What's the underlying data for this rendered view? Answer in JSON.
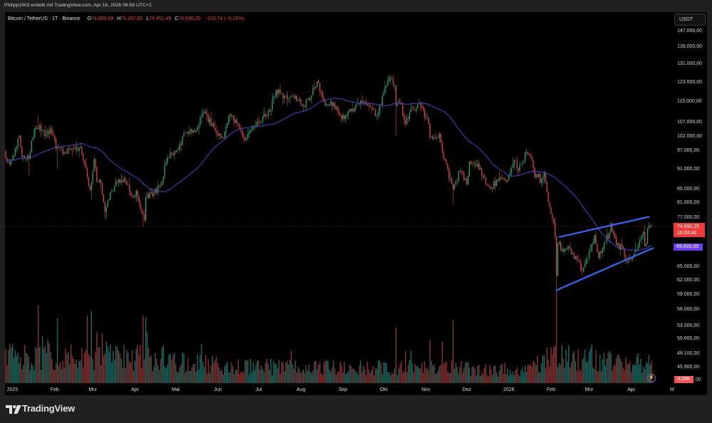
{
  "header": {
    "attribution": "Philipp1902 erstellt mit TradingView.com, Apr 16, 2026 09:56 UTC+2"
  },
  "legend": {
    "symbol": "Bitcoin / TetherUS · 1T · Binance",
    "open_label": "O",
    "open": "74.809,99",
    "high_label": "H",
    "high": "75.267,85",
    "low_label": "L",
    "low": "74.451,49",
    "close_label": "C",
    "close": "74.690,25",
    "change": "−119,74 (−0,16%)"
  },
  "price_axis": {
    "currency_button": "USDT",
    "ticks": [
      {
        "label": "147.000,00",
        "value": 147000
      },
      {
        "label": "139.000,00",
        "value": 139000
      },
      {
        "label": "131.000,00",
        "value": 131000
      },
      {
        "label": "123.000,00",
        "value": 123000
      },
      {
        "label": "115.000,00",
        "value": 115000
      },
      {
        "label": "107.000,00",
        "value": 107000
      },
      {
        "label": "102.000,00",
        "value": 102000
      },
      {
        "label": "97.000,00",
        "value": 97000
      },
      {
        "label": "91.000,00",
        "value": 91000
      },
      {
        "label": "85.000,00",
        "value": 85000
      },
      {
        "label": "81.000,00",
        "value": 81000
      },
      {
        "label": "77.000,00",
        "value": 77000
      },
      {
        "label": "65.000,00",
        "value": 65000
      },
      {
        "label": "62.000,00",
        "value": 62000
      },
      {
        "label": "59.000,00",
        "value": 59000
      },
      {
        "label": "56.000,00",
        "value": 56000
      },
      {
        "label": "53.000,00",
        "value": 53000
      },
      {
        "label": "50.600,00",
        "value": 50600
      },
      {
        "label": "48.100,00",
        "value": 48100
      },
      {
        "label": "45.900,00",
        "value": 45900
      }
    ],
    "last_price": {
      "label": "74.690,25",
      "value": 74690.25,
      "countdown": "16:03:46"
    },
    "ma_value": {
      "label": "69.835,09",
      "value": 69835.09
    },
    "volume_value": {
      "label": "4,08K"
    },
    "volume_tick_fragment": ",00"
  },
  "time_axis": {
    "labels": [
      {
        "label": "2025",
        "date": "2025-01-01"
      },
      {
        "label": "Feb",
        "date": "2025-02-01"
      },
      {
        "label": "Mrz",
        "date": "2025-03-01"
      },
      {
        "label": "Apr",
        "date": "2025-04-01"
      },
      {
        "label": "Mai",
        "date": "2025-05-01"
      },
      {
        "label": "Jun",
        "date": "2025-06-01"
      },
      {
        "label": "Jul",
        "date": "2025-07-01"
      },
      {
        "label": "Aug",
        "date": "2025-08-01"
      },
      {
        "label": "Sep",
        "date": "2025-09-01"
      },
      {
        "label": "Okt",
        "date": "2025-10-01"
      },
      {
        "label": "Nov",
        "date": "2025-11-01"
      },
      {
        "label": "Dez",
        "date": "2025-12-01"
      },
      {
        "label": "2026",
        "date": "2026-01-01"
      },
      {
        "label": "Feb",
        "date": "2026-02-01"
      },
      {
        "label": "Mrz",
        "date": "2026-03-01"
      },
      {
        "label": "Apr",
        "date": "2026-04-01"
      },
      {
        "label": "M",
        "date": "2026-05-01"
      }
    ]
  },
  "icons": {
    "alert": "⚡"
  },
  "footer": {
    "brand": "TradingView"
  },
  "colors": {
    "background": "#202020",
    "panel": "#000000",
    "up": "#2ea570",
    "down": "#e04848",
    "vol_up": "#1d6b62",
    "vol_down": "#8c3333",
    "ma": "#4b40d4",
    "trendline": "#2f6bf5",
    "last_price": "#f03a3a",
    "ma_label": "#6a3df2",
    "volume_label": "#f05454",
    "alert": "#9b4fd0"
  },
  "chart_data": {
    "type": "line",
    "style": "candlestick",
    "title": "Bitcoin / TetherUS · 1T · Binance",
    "xlabel": "",
    "ylabel": "USDT",
    "y_scale": "log",
    "ylim": [
      45900,
      147000
    ],
    "x_range": [
      "2024-12-27",
      "2026-04-16"
    ],
    "grid": false,
    "legend_position": "top-left",
    "first_open": 96800,
    "last_candle": {
      "open": 74809.99,
      "high": 75267.85,
      "low": 74451.49,
      "close": 74690.25,
      "change": -119.74,
      "change_pct": -0.16
    },
    "series": [
      {
        "name": "BTCUSDT daily close (approx.)",
        "points": [
          [
            "2024-12-27",
            94500
          ],
          [
            "2024-12-30",
            92500
          ],
          [
            "2025-01-01",
            94500
          ],
          [
            "2025-01-04",
            98300
          ],
          [
            "2025-01-06",
            102200
          ],
          [
            "2025-01-08",
            95000
          ],
          [
            "2025-01-10",
            94500
          ],
          [
            "2025-01-13",
            94500
          ],
          [
            "2025-01-15",
            100500
          ],
          [
            "2025-01-17",
            104500
          ],
          [
            "2025-01-21",
            106000
          ],
          [
            "2025-01-23",
            104000
          ],
          [
            "2025-01-26",
            102500
          ],
          [
            "2025-01-29",
            104800
          ],
          [
            "2025-01-31",
            102400
          ],
          [
            "2025-02-02",
            97700
          ],
          [
            "2025-02-04",
            98000
          ],
          [
            "2025-02-08",
            96500
          ],
          [
            "2025-02-14",
            97500
          ],
          [
            "2025-02-20",
            98300
          ],
          [
            "2025-02-21",
            96100
          ],
          [
            "2025-02-24",
            91500
          ],
          [
            "2025-02-25",
            88700
          ],
          [
            "2025-02-27",
            84700
          ],
          [
            "2025-03-02",
            94200
          ],
          [
            "2025-03-04",
            87200
          ],
          [
            "2025-03-07",
            86700
          ],
          [
            "2025-03-10",
            78600
          ],
          [
            "2025-03-14",
            84000
          ],
          [
            "2025-03-19",
            86800
          ],
          [
            "2025-03-24",
            88000
          ],
          [
            "2025-03-28",
            84400
          ],
          [
            "2025-03-31",
            82500
          ],
          [
            "2025-04-02",
            84500
          ],
          [
            "2025-04-06",
            78300
          ],
          [
            "2025-04-08",
            76300
          ],
          [
            "2025-04-09",
            82600
          ],
          [
            "2025-04-15",
            83600
          ],
          [
            "2025-04-21",
            87500
          ],
          [
            "2025-04-25",
            94700
          ],
          [
            "2025-05-01",
            96500
          ],
          [
            "2025-05-08",
            103000
          ],
          [
            "2025-05-15",
            103500
          ],
          [
            "2025-05-22",
            111000
          ],
          [
            "2025-05-30",
            104000
          ],
          [
            "2025-06-05",
            101500
          ],
          [
            "2025-06-10",
            110200
          ],
          [
            "2025-06-17",
            104500
          ],
          [
            "2025-06-22",
            101000
          ],
          [
            "2025-06-30",
            107100
          ],
          [
            "2025-07-09",
            111300
          ],
          [
            "2025-07-14",
            119800
          ],
          [
            "2025-07-20",
            117300
          ],
          [
            "2025-07-31",
            115700
          ],
          [
            "2025-08-02",
            113300
          ],
          [
            "2025-08-08",
            116600
          ],
          [
            "2025-08-13",
            123300
          ],
          [
            "2025-08-19",
            113500
          ],
          [
            "2025-08-23",
            115000
          ],
          [
            "2025-08-31",
            108200
          ],
          [
            "2025-09-07",
            111100
          ],
          [
            "2025-09-14",
            115300
          ],
          [
            "2025-09-22",
            112700
          ],
          [
            "2025-09-26",
            109600
          ],
          [
            "2025-10-01",
            118600
          ],
          [
            "2025-10-06",
            124700
          ],
          [
            "2025-10-09",
            121800
          ],
          [
            "2025-10-10",
            113200
          ],
          [
            "2025-10-13",
            114800
          ],
          [
            "2025-10-17",
            106500
          ],
          [
            "2025-10-20",
            110600
          ],
          [
            "2025-10-27",
            114100
          ],
          [
            "2025-11-03",
            106500
          ],
          [
            "2025-11-04",
            101500
          ],
          [
            "2025-11-11",
            103000
          ],
          [
            "2025-11-14",
            94500
          ],
          [
            "2025-11-21",
            85000
          ],
          [
            "2025-11-26",
            90500
          ],
          [
            "2025-12-01",
            86300
          ],
          [
            "2025-12-03",
            93400
          ],
          [
            "2025-12-09",
            92700
          ],
          [
            "2025-12-15",
            86400
          ],
          [
            "2025-12-18",
            85500
          ],
          [
            "2025-12-25",
            87600
          ],
          [
            "2025-12-31",
            87600
          ],
          [
            "2026-01-05",
            93800
          ],
          [
            "2026-01-08",
            90600
          ],
          [
            "2026-01-14",
            96500
          ],
          [
            "2026-01-17",
            95000
          ],
          [
            "2026-01-20",
            88500
          ],
          [
            "2026-01-23",
            89500
          ],
          [
            "2026-01-24",
            86800
          ],
          [
            "2026-01-27",
            89800
          ],
          [
            "2026-01-29",
            84000
          ],
          [
            "2026-01-31",
            80000
          ],
          [
            "2026-02-01",
            78000
          ],
          [
            "2026-02-03",
            75500
          ],
          [
            "2026-02-04",
            72000
          ],
          [
            "2026-02-05",
            63000
          ],
          [
            "2026-02-06",
            70500
          ],
          [
            "2026-02-10",
            68500
          ],
          [
            "2026-02-15",
            69000
          ],
          [
            "2026-02-20",
            66500
          ],
          [
            "2026-02-24",
            63800
          ],
          [
            "2026-03-02",
            68500
          ],
          [
            "2026-03-05",
            72500
          ],
          [
            "2026-03-08",
            67000
          ],
          [
            "2026-03-12",
            70500
          ],
          [
            "2026-03-16",
            73000
          ],
          [
            "2026-03-17",
            75500
          ],
          [
            "2026-03-21",
            70000
          ],
          [
            "2026-03-26",
            69000
          ],
          [
            "2026-03-29",
            66000
          ],
          [
            "2026-04-02",
            67000
          ],
          [
            "2026-04-05",
            69000
          ],
          [
            "2026-04-08",
            71500
          ],
          [
            "2026-04-09",
            72500
          ],
          [
            "2026-04-10",
            73300
          ],
          [
            "2026-04-11",
            69800
          ],
          [
            "2026-04-12",
            70200
          ],
          [
            "2026-04-13",
            74200
          ],
          [
            "2026-04-14",
            74900
          ],
          [
            "2026-04-15",
            74810
          ],
          [
            "2026-04-16",
            74690.25
          ]
        ]
      },
      {
        "name": "SMA",
        "period": 50,
        "seed_value": 94000,
        "last_value": 69835.09,
        "last_label": "69.835,09"
      },
      {
        "name": "Volume",
        "last_label": "4,08K",
        "scale": "relative (1.0 = tallest bar)",
        "base_levels": [
          [
            "2024-12-27",
            0.3
          ],
          [
            "2025-03-15",
            0.3
          ],
          [
            "2025-04-15",
            0.28
          ],
          [
            "2025-06-01",
            0.2
          ],
          [
            "2025-09-01",
            0.17
          ],
          [
            "2025-11-01",
            0.18
          ],
          [
            "2026-01-15",
            0.14
          ],
          [
            "2026-02-01",
            0.3
          ],
          [
            "2026-02-20",
            0.28
          ],
          [
            "2026-04-16",
            0.22
          ]
        ],
        "spikes": [
          [
            "2025-01-20",
            0.84
          ],
          [
            "2025-01-23",
            0.51
          ],
          [
            "2025-01-27",
            0.47
          ],
          [
            "2025-02-03",
            0.7
          ],
          [
            "2025-02-25",
            0.73
          ],
          [
            "2025-02-28",
            0.78
          ],
          [
            "2025-03-04",
            0.55
          ],
          [
            "2025-03-08",
            0.54
          ],
          [
            "2025-03-11",
            0.45
          ],
          [
            "2025-04-02",
            0.37
          ],
          [
            "2025-04-07",
            0.73
          ],
          [
            "2025-04-09",
            0.71
          ],
          [
            "2025-04-10",
            0.55
          ],
          [
            "2025-04-22",
            0.41
          ],
          [
            "2025-05-20",
            0.42
          ],
          [
            "2025-07-25",
            0.35
          ],
          [
            "2025-10-10",
            0.6
          ],
          [
            "2025-10-17",
            0.35
          ],
          [
            "2025-10-21",
            0.35
          ],
          [
            "2025-11-04",
            0.47
          ],
          [
            "2025-11-13",
            0.45
          ],
          [
            "2025-11-21",
            0.68
          ],
          [
            "2026-02-01",
            0.39
          ],
          [
            "2026-02-03",
            0.39
          ],
          [
            "2026-02-05",
            1.0
          ],
          [
            "2026-03-03",
            0.42
          ],
          [
            "2026-03-12",
            0.33
          ],
          [
            "2026-04-16",
            0.24
          ]
        ]
      }
    ],
    "wick_extremes": [
      {
        "date": "2025-01-13",
        "low": 89200
      },
      {
        "date": "2025-01-20",
        "high": 109500
      },
      {
        "date": "2025-02-03",
        "low": 91200
      },
      {
        "date": "2025-02-28",
        "low": 82000
      },
      {
        "date": "2025-03-11",
        "low": 76600
      },
      {
        "date": "2025-04-07",
        "low": 74500
      },
      {
        "date": "2025-05-22",
        "high": 111900
      },
      {
        "date": "2025-08-14",
        "high": 124400
      },
      {
        "date": "2025-10-06",
        "high": 126200
      },
      {
        "date": "2025-10-10",
        "low": 102000
      },
      {
        "date": "2025-11-21",
        "low": 80600
      },
      {
        "date": "2026-01-14",
        "high": 97900
      },
      {
        "date": "2026-02-05",
        "low": 60000
      },
      {
        "date": "2026-03-17",
        "high": 76000
      }
    ],
    "drawings": [
      {
        "type": "trend_line",
        "name": "upper-wedge-line",
        "from": [
          "2026-02-07",
          72000
        ],
        "to": [
          "2026-04-14",
          77200
        ]
      },
      {
        "type": "trend_line",
        "name": "lower-wedge-line",
        "from": [
          "2026-02-05",
          59900
        ],
        "to": [
          "2026-04-17",
          69300
        ]
      }
    ]
  }
}
